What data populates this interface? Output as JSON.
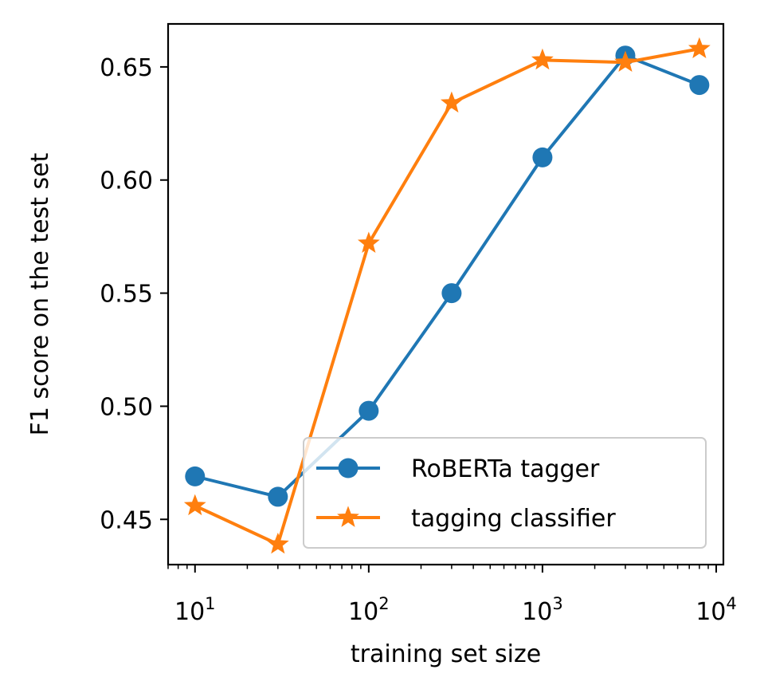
{
  "chart_data": {
    "type": "line",
    "xlabel": "training set size",
    "ylabel": "F1 score on the test set",
    "xscale": "log",
    "xlim": [
      7,
      11000
    ],
    "ylim": [
      0.43,
      0.669
    ],
    "xticks": [
      {
        "value": 10,
        "base": "10",
        "exp": "1"
      },
      {
        "value": 100,
        "base": "10",
        "exp": "2"
      },
      {
        "value": 1000,
        "base": "10",
        "exp": "3"
      },
      {
        "value": 10000,
        "base": "10",
        "exp": "4"
      }
    ],
    "yticks": [
      {
        "value": 0.45,
        "label": "0.45"
      },
      {
        "value": 0.5,
        "label": "0.50"
      },
      {
        "value": 0.55,
        "label": "0.55"
      },
      {
        "value": 0.6,
        "label": "0.60"
      },
      {
        "value": 0.65,
        "label": "0.65"
      }
    ],
    "grid": false,
    "legend_position": "lower-right",
    "series": [
      {
        "name": "RoBERTa tagger",
        "color": "#1f77b4",
        "marker": "circle",
        "x": [
          10,
          30,
          100,
          300,
          1000,
          3000,
          8000
        ],
        "y": [
          0.469,
          0.46,
          0.498,
          0.55,
          0.61,
          0.655,
          0.642
        ]
      },
      {
        "name": "tagging classifier",
        "color": "#ff7f0e",
        "marker": "star",
        "x": [
          10,
          30,
          100,
          300,
          1000,
          3000,
          8000
        ],
        "y": [
          0.456,
          0.439,
          0.572,
          0.634,
          0.653,
          0.652,
          0.658
        ]
      }
    ]
  }
}
